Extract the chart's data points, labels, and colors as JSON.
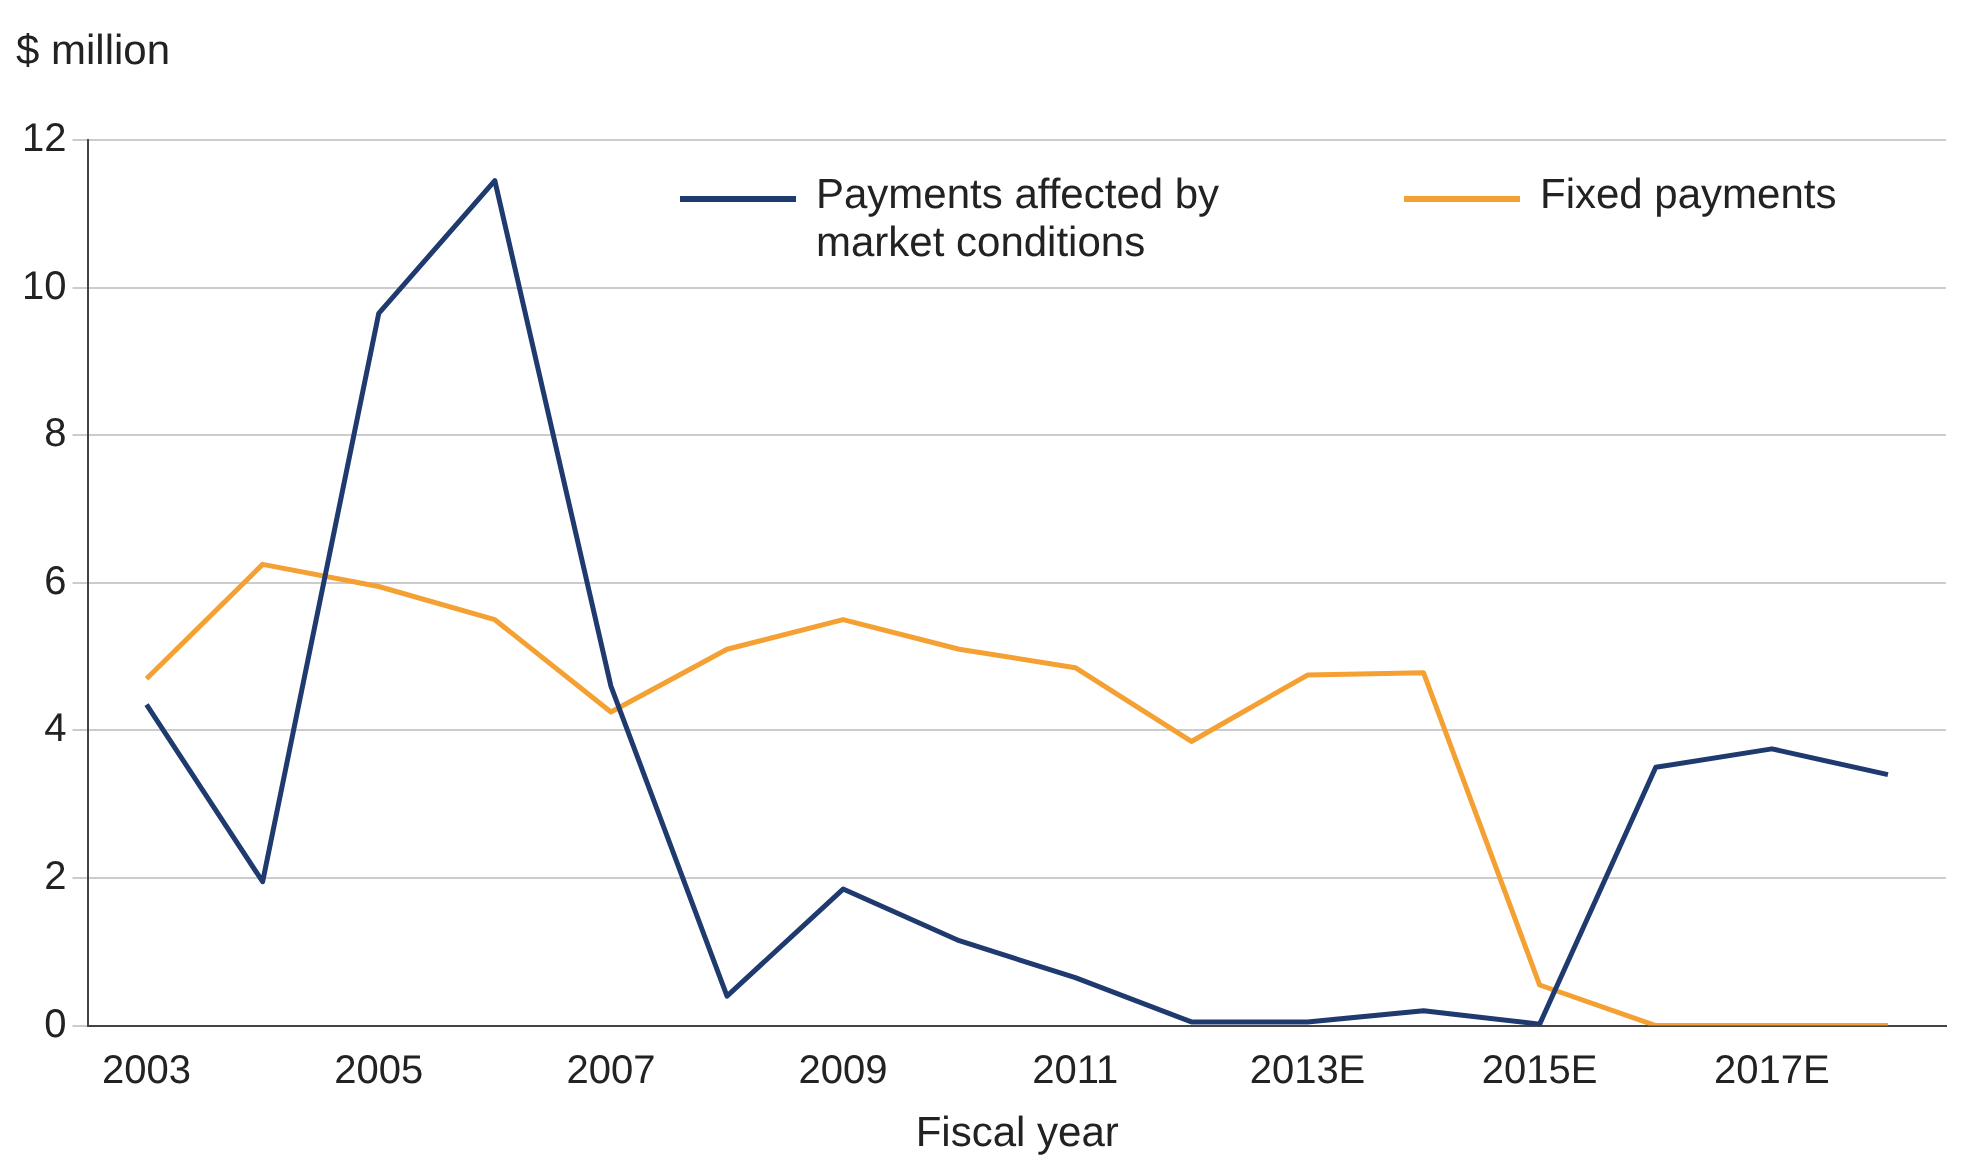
{
  "chart_data": {
    "type": "line",
    "ylabel": "$ million",
    "xlabel": "Fiscal year",
    "categories": [
      "2003",
      null,
      "2005",
      null,
      "2007",
      null,
      "2009",
      null,
      "2011",
      null,
      "2013E",
      null,
      "2015E",
      null,
      "2017E",
      null
    ],
    "series": [
      {
        "name": "Payments affected by market conditions",
        "color": "#1f3a6e",
        "values": [
          4.35,
          1.95,
          9.65,
          11.45,
          4.6,
          0.4,
          1.85,
          1.15,
          0.65,
          0.05,
          0.05,
          0.2,
          0.02,
          3.5,
          3.75,
          3.4
        ]
      },
      {
        "name": "Fixed payments",
        "color": "#f4a032",
        "values": [
          4.7,
          6.25,
          5.95,
          5.5,
          4.25,
          5.1,
          5.5,
          5.1,
          4.85,
          3.85,
          4.75,
          4.78,
          0.55,
          0,
          0,
          0
        ]
      }
    ],
    "ylim": [
      0,
      12
    ],
    "yticks": [
      0,
      2,
      4,
      6,
      8,
      10,
      12
    ],
    "grid": "y",
    "legend": "top right",
    "marker": "none",
    "line_style": "solid"
  }
}
